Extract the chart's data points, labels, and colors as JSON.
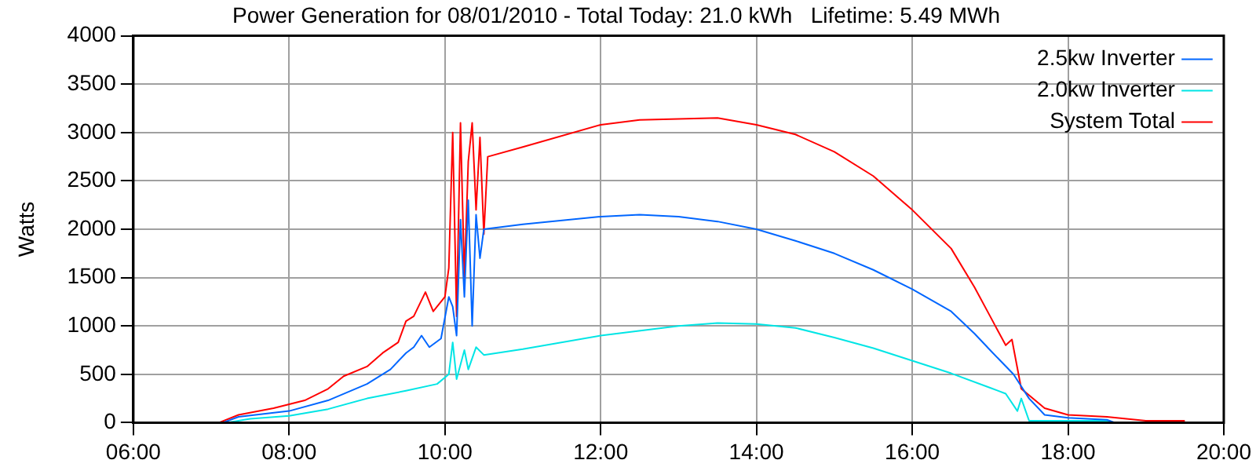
{
  "chart_data": {
    "type": "line",
    "title": "Power Generation for 08/01/2010 - Total Today: 21.0 kWh   Lifetime: 5.49 MWh",
    "ylabel": "Watts",
    "xlim": [
      6,
      20
    ],
    "xticks": [
      {
        "value": 6,
        "label": "06:00"
      },
      {
        "value": 8,
        "label": "08:00"
      },
      {
        "value": 10,
        "label": "10:00"
      },
      {
        "value": 12,
        "label": "12:00"
      },
      {
        "value": 14,
        "label": "14:00"
      },
      {
        "value": 16,
        "label": "16:00"
      },
      {
        "value": 18,
        "label": "18:00"
      },
      {
        "value": 20,
        "label": "20:00"
      }
    ],
    "ylim": [
      0,
      4000
    ],
    "yticks": [
      0,
      500,
      1000,
      1500,
      2000,
      2500,
      3000,
      3500,
      4000
    ],
    "grid": true,
    "legend": "top right",
    "marker": "none",
    "line_style": "solid",
    "series": [
      {
        "name": "2.5kw Inverter",
        "color": "#0066ff",
        "x": [
          7.15,
          7.35,
          8.0,
          8.5,
          9.0,
          9.3,
          9.5,
          9.6,
          9.7,
          9.8,
          9.95,
          10.05,
          10.1,
          10.15,
          10.2,
          10.25,
          10.3,
          10.35,
          10.4,
          10.45,
          10.5,
          11,
          12,
          12.5,
          13,
          13.5,
          14,
          14.5,
          15,
          15.5,
          16,
          16.5,
          16.8,
          17,
          17.3,
          17.5,
          17.7,
          18,
          18.5,
          18.6
        ],
        "values": [
          0,
          60,
          120,
          230,
          400,
          550,
          720,
          780,
          900,
          780,
          870,
          1300,
          1200,
          900,
          2100,
          1300,
          2300,
          1000,
          2150,
          1700,
          2000,
          2050,
          2130,
          2150,
          2130,
          2080,
          2000,
          1880,
          1750,
          1580,
          1380,
          1150,
          920,
          750,
          500,
          250,
          80,
          50,
          30,
          0
        ]
      },
      {
        "name": "2.0kw Inverter",
        "color": "#00e5e5",
        "x": [
          7.2,
          7.5,
          8,
          8.5,
          9,
          9.5,
          9.9,
          10.05,
          10.1,
          10.15,
          10.25,
          10.3,
          10.4,
          10.5,
          11,
          12,
          13,
          13.5,
          14,
          14.5,
          15,
          15.5,
          16,
          16.5,
          17,
          17.2,
          17.35,
          17.4,
          17.5,
          18,
          18.5,
          18.55
        ],
        "values": [
          0,
          40,
          70,
          140,
          250,
          330,
          400,
          500,
          830,
          450,
          750,
          550,
          780,
          700,
          760,
          900,
          1000,
          1030,
          1020,
          980,
          880,
          770,
          640,
          510,
          360,
          300,
          120,
          250,
          20,
          20,
          20,
          0
        ]
      },
      {
        "name": "System Total",
        "color": "#ff0000",
        "x": [
          7.1,
          7.35,
          7.8,
          8.2,
          8.5,
          8.7,
          9.0,
          9.2,
          9.4,
          9.5,
          9.6,
          9.75,
          9.85,
          10.0,
          10.05,
          10.1,
          10.15,
          10.2,
          10.25,
          10.3,
          10.35,
          10.4,
          10.45,
          10.5,
          10.55,
          11,
          12,
          12.5,
          13.5,
          14,
          14.5,
          15,
          15.5,
          16,
          16.5,
          16.8,
          17,
          17.2,
          17.28,
          17.4,
          17.7,
          18,
          18.5,
          19,
          19.5
        ],
        "values": [
          0,
          80,
          150,
          230,
          350,
          480,
          580,
          720,
          830,
          1050,
          1100,
          1350,
          1150,
          1300,
          1600,
          3000,
          1100,
          3100,
          1500,
          2700,
          3100,
          2200,
          2950,
          1950,
          2750,
          2850,
          3080,
          3130,
          3150,
          3080,
          2980,
          2800,
          2550,
          2200,
          1800,
          1400,
          1100,
          800,
          860,
          350,
          150,
          80,
          60,
          20,
          20
        ]
      }
    ]
  }
}
